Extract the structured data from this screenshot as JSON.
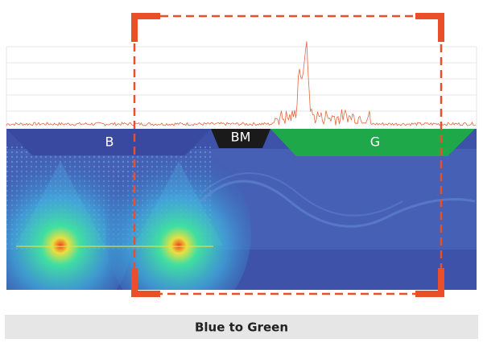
{
  "regions": {
    "b": "B",
    "bm": "BM",
    "g": "G"
  },
  "caption": "Blue to Green"
}
